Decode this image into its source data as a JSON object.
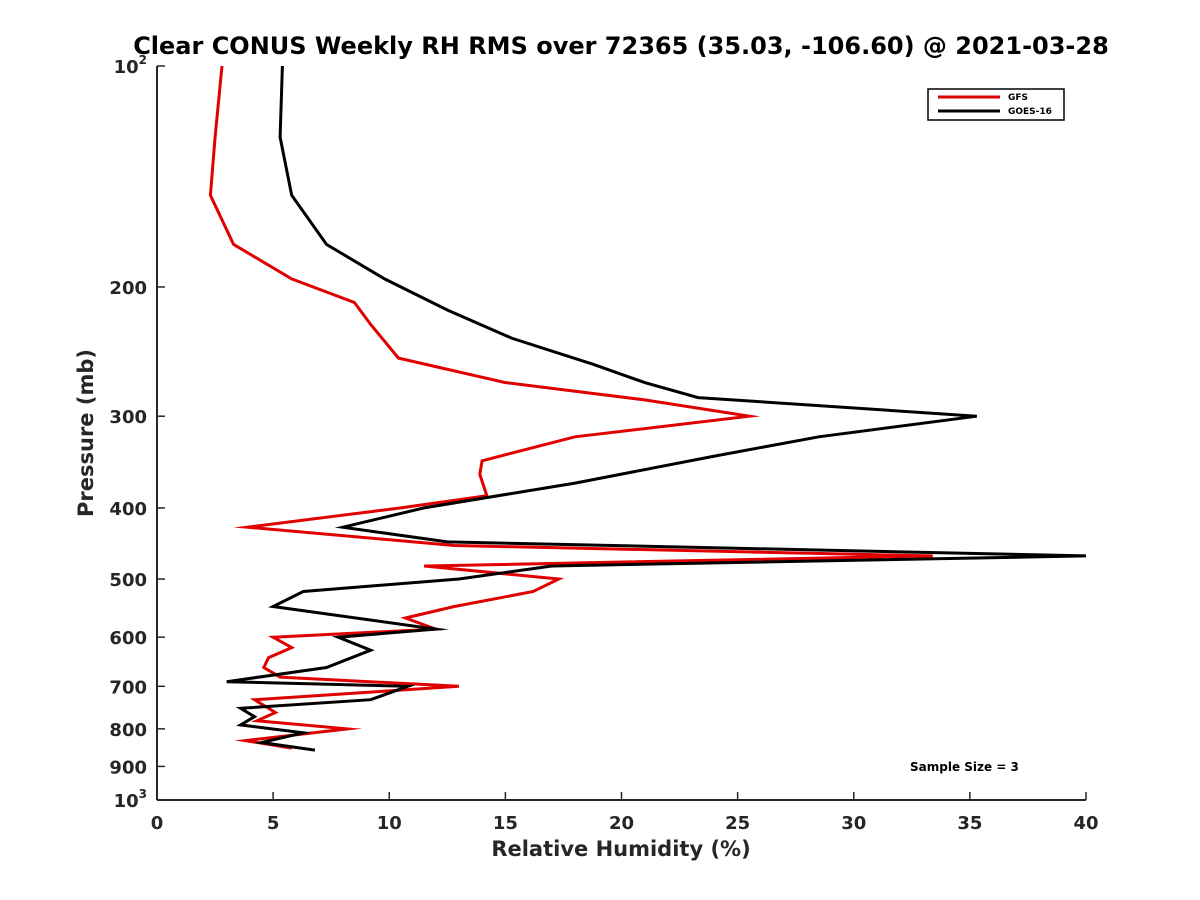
{
  "chart_data": {
    "type": "line",
    "title": "Clear CONUS Weekly RH RMS over 72365 (35.03, -106.60) @ 2021-03-28",
    "xlabel": "Relative Humidity (%)",
    "ylabel": "Pressure (mb)",
    "xlim": [
      0,
      40
    ],
    "ylim": [
      100,
      1000
    ],
    "y_scale": "log",
    "y_direction": "reversed",
    "x_ticks": [
      "0",
      "5",
      "10",
      "15",
      "20",
      "25",
      "30",
      "35",
      "40"
    ],
    "y_ticks": [
      {
        "value": 100,
        "base": "10",
        "exp": "2"
      },
      {
        "value": 200,
        "label": "200"
      },
      {
        "value": 300,
        "label": "300"
      },
      {
        "value": 400,
        "label": "400"
      },
      {
        "value": 500,
        "label": "500"
      },
      {
        "value": 600,
        "label": "600"
      },
      {
        "value": 700,
        "label": "700"
      },
      {
        "value": 800,
        "label": "800"
      },
      {
        "value": 900,
        "label": "900"
      },
      {
        "value": 1000,
        "base": "10",
        "exp": "3"
      }
    ],
    "grid": false,
    "legend_position": "top-right",
    "annotation": "Sample Size = 3",
    "series": [
      {
        "name": "GFS",
        "color": "#e00000",
        "points": [
          [
            2.8,
            100
          ],
          [
            2.5,
            125
          ],
          [
            2.3,
            150
          ],
          [
            3.3,
            175
          ],
          [
            5.8,
            195
          ],
          [
            8.5,
            210
          ],
          [
            9.2,
            225
          ],
          [
            10.4,
            250
          ],
          [
            15.0,
            270
          ],
          [
            21.0,
            285
          ],
          [
            25.5,
            300
          ],
          [
            18.0,
            320
          ],
          [
            14.0,
            345
          ],
          [
            13.9,
            360
          ],
          [
            14.2,
            385
          ],
          [
            10.5,
            400
          ],
          [
            3.9,
            425
          ],
          [
            12.8,
            450
          ],
          [
            33.4,
            465
          ],
          [
            11.5,
            480
          ],
          [
            17.3,
            500
          ],
          [
            16.2,
            520
          ],
          [
            12.8,
            545
          ],
          [
            10.7,
            565
          ],
          [
            12.0,
            585
          ],
          [
            5.0,
            600
          ],
          [
            5.8,
            620
          ],
          [
            4.8,
            640
          ],
          [
            4.6,
            660
          ],
          [
            5.3,
            680
          ],
          [
            13.0,
            700
          ],
          [
            4.2,
            730
          ],
          [
            5.1,
            760
          ],
          [
            4.3,
            780
          ],
          [
            8.2,
            800
          ],
          [
            3.8,
            830
          ],
          [
            5.8,
            850
          ]
        ]
      },
      {
        "name": "GOES-16",
        "color": "#000000",
        "points": [
          [
            5.4,
            100
          ],
          [
            5.3,
            125
          ],
          [
            5.8,
            150
          ],
          [
            7.3,
            175
          ],
          [
            9.8,
            195
          ],
          [
            12.5,
            215
          ],
          [
            15.3,
            235
          ],
          [
            18.8,
            255
          ],
          [
            21.0,
            270
          ],
          [
            23.3,
            283
          ],
          [
            35.3,
            300
          ],
          [
            28.5,
            320
          ],
          [
            24.0,
            340
          ],
          [
            18.0,
            370
          ],
          [
            11.5,
            400
          ],
          [
            8.0,
            425
          ],
          [
            12.5,
            445
          ],
          [
            40.0,
            465
          ],
          [
            17.0,
            480
          ],
          [
            13.0,
            500
          ],
          [
            6.3,
            520
          ],
          [
            5.0,
            545
          ],
          [
            12.0,
            585
          ],
          [
            7.8,
            600
          ],
          [
            9.2,
            625
          ],
          [
            7.3,
            660
          ],
          [
            3.0,
            690
          ],
          [
            10.8,
            700
          ],
          [
            9.2,
            730
          ],
          [
            3.6,
            750
          ],
          [
            4.2,
            770
          ],
          [
            3.6,
            790
          ],
          [
            6.3,
            810
          ],
          [
            4.5,
            835
          ],
          [
            6.8,
            855
          ]
        ]
      }
    ]
  }
}
